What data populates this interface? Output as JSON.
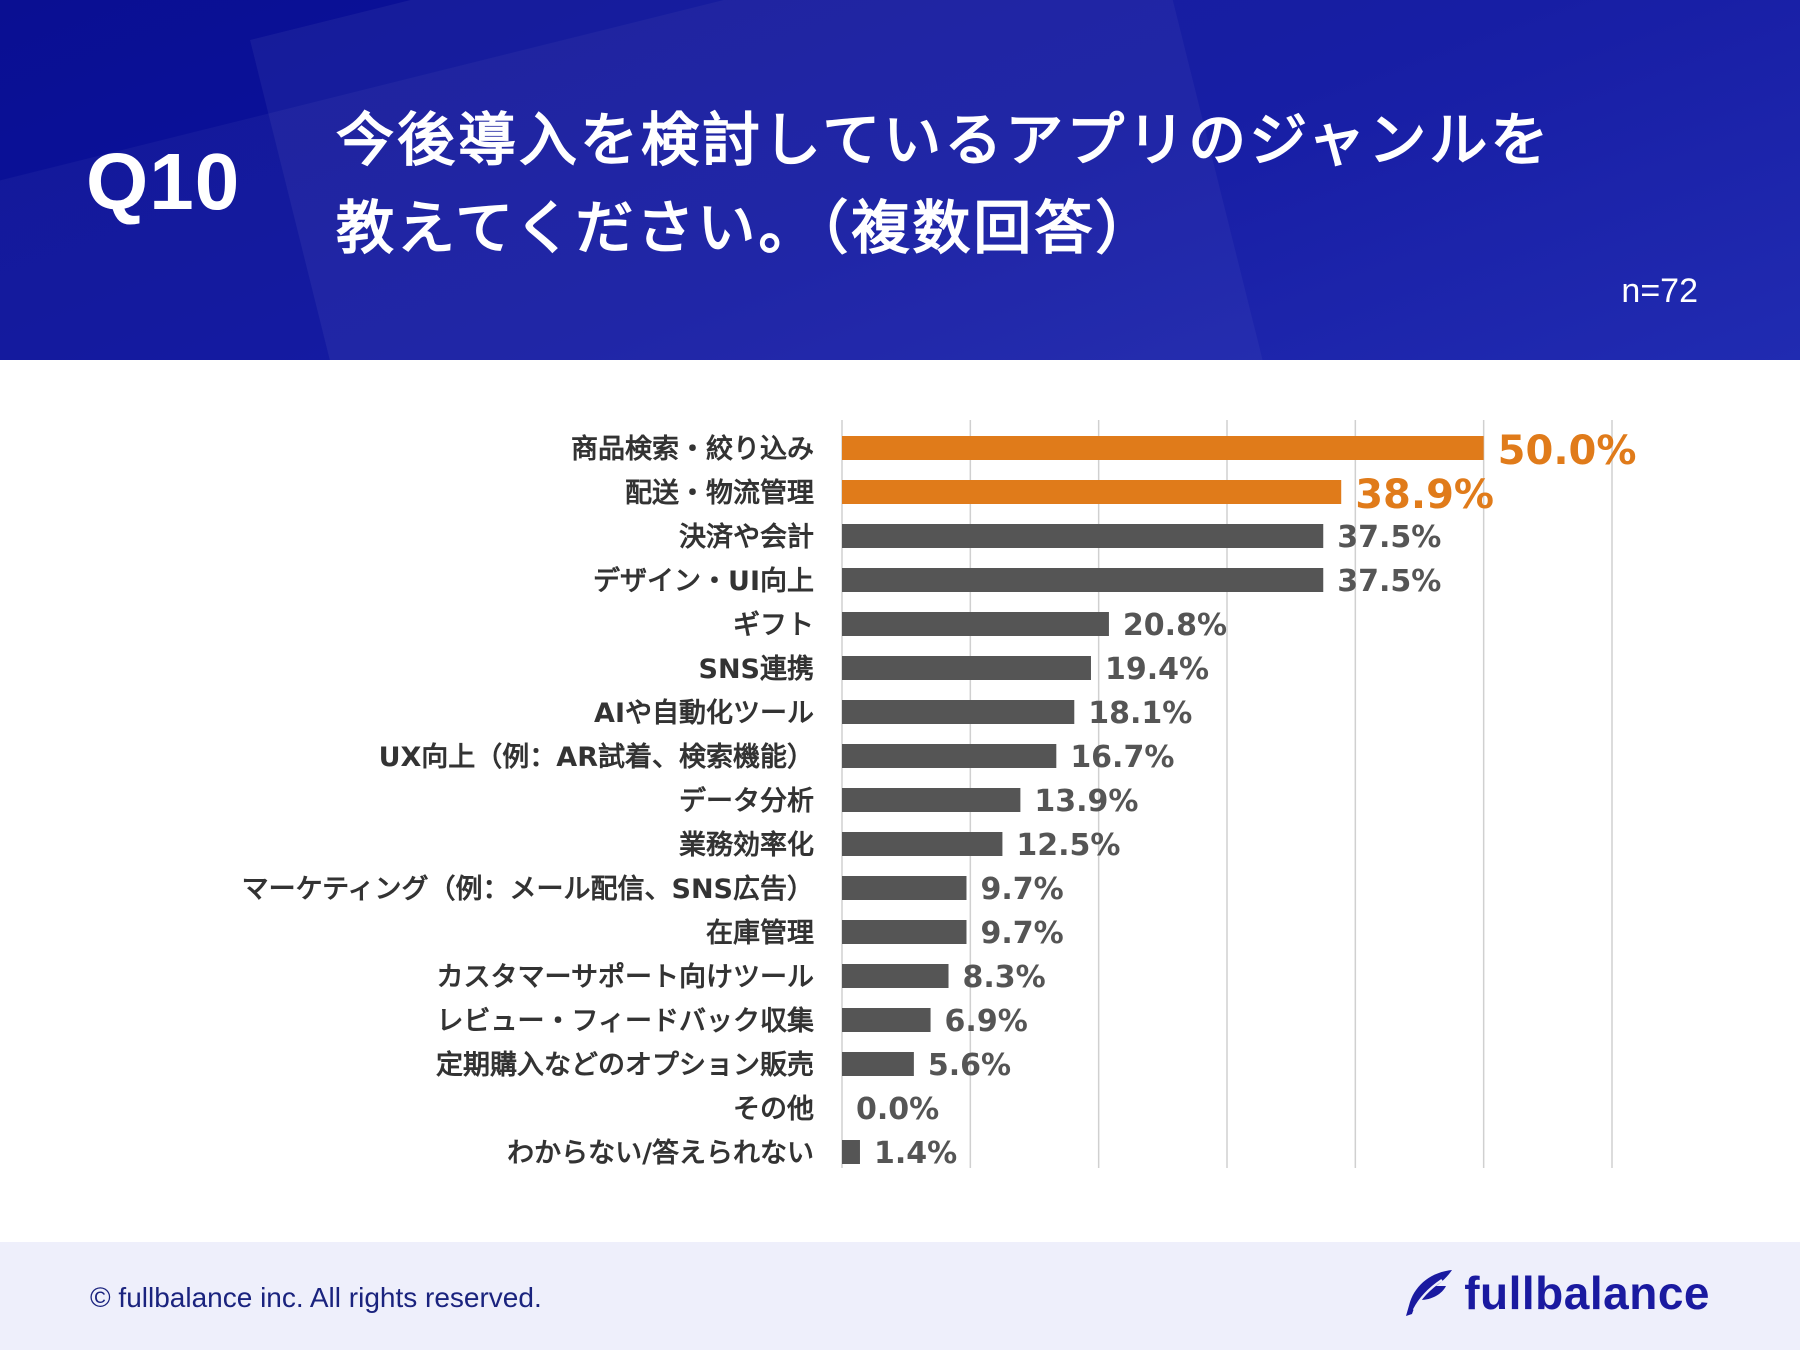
{
  "header": {
    "question_number": "Q10",
    "title_line1": "今後導入を検討しているアプリのジャンルを",
    "title_line2": "教えてください。（複数回答）",
    "sample_size": "n=72"
  },
  "chart_data": {
    "type": "bar",
    "orientation": "horizontal",
    "title": "今後導入を検討しているアプリのジャンルを教えてください。（複数回答）",
    "xlabel": "",
    "ylabel": "",
    "xlim": [
      0,
      60
    ],
    "grid": true,
    "categories": [
      "商品検索・絞り込み",
      "配送・物流管理",
      "決済や会計",
      "デザイン・UI向上",
      "ギフト",
      "SNS連携",
      "AIや自動化ツール",
      "UX向上（例：AR試着、検索機能）",
      "データ分析",
      "業務効率化",
      "マーケティング（例：メール配信、SNS広告）",
      "在庫管理",
      "カスタマーサポート向けツール",
      "レビュー・フィードバック収集",
      "定期購入などのオプション販売",
      "その他",
      "わからない/答えられない"
    ],
    "values": [
      50.0,
      38.9,
      37.5,
      37.5,
      20.8,
      19.4,
      18.1,
      16.7,
      13.9,
      12.5,
      9.7,
      9.7,
      8.3,
      6.9,
      5.6,
      0.0,
      1.4
    ],
    "value_labels": [
      "50.0%",
      "38.9%",
      "37.5%",
      "37.5%",
      "20.8%",
      "19.4%",
      "18.1%",
      "16.7%",
      "13.9%",
      "12.5%",
      "9.7%",
      "9.7%",
      "8.3%",
      "6.9%",
      "5.6%",
      "0.0%",
      "1.4%"
    ],
    "highlight_count": 2,
    "colors": {
      "highlight": "#e07b1a",
      "default": "#555555",
      "grid": "#d0d0d0",
      "category_text": "#333333",
      "value_text": "#555555"
    }
  },
  "footer": {
    "copyright": "© fullbalance inc. All rights reserved.",
    "brand_name": "fullbalance",
    "brand_logo_icon": "feather-icon"
  }
}
